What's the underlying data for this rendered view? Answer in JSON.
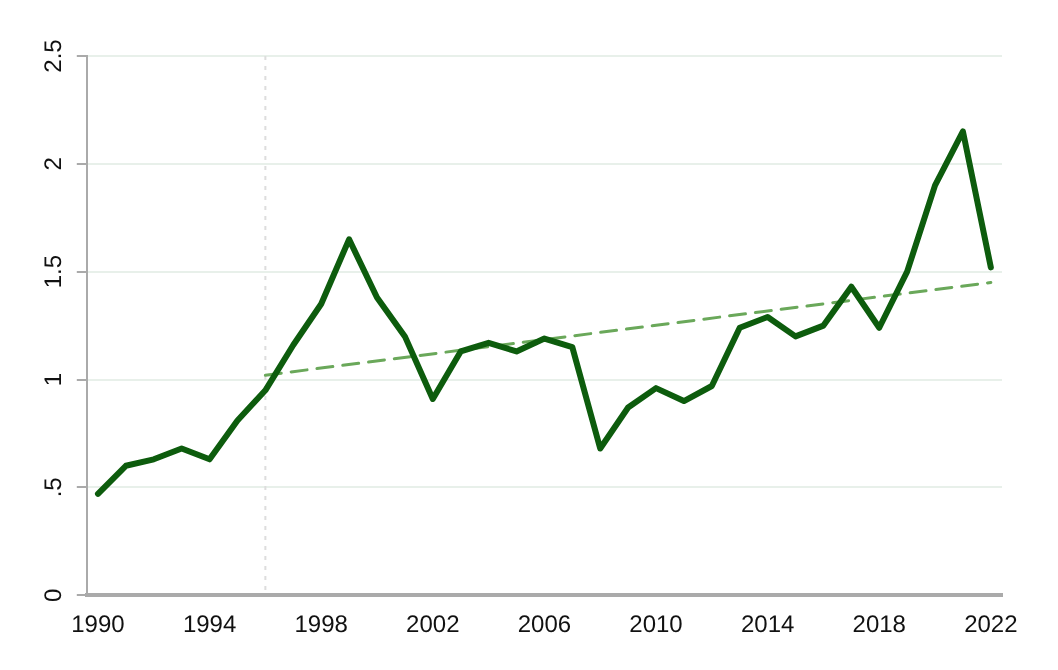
{
  "chart_data": {
    "type": "line",
    "x": [
      1990,
      1991,
      1992,
      1993,
      1994,
      1995,
      1996,
      1997,
      1998,
      1999,
      2000,
      2001,
      2002,
      2003,
      2004,
      2005,
      2006,
      2007,
      2008,
      2009,
      2010,
      2011,
      2012,
      2013,
      2014,
      2015,
      2016,
      2017,
      2018,
      2019,
      2020,
      2021,
      2022
    ],
    "series": [
      {
        "color": "#0d5c0d",
        "values": [
          0.47,
          0.6,
          0.63,
          0.68,
          0.63,
          0.81,
          0.95,
          1.16,
          1.35,
          1.65,
          1.38,
          1.2,
          0.91,
          1.13,
          1.17,
          1.13,
          1.19,
          1.15,
          0.68,
          0.87,
          0.96,
          0.9,
          0.97,
          1.24,
          1.29,
          1.2,
          1.25,
          1.43,
          1.24,
          1.5,
          1.9,
          2.15,
          1.52
        ]
      },
      {
        "type": "line",
        "color": "#6aa85a",
        "line_style": "dashed",
        "x": [
          1996,
          2022
        ],
        "values": [
          1.02,
          1.45
        ]
      }
    ],
    "xlim": [
      1989.6,
      2022.4
    ],
    "xticks": [
      1990,
      1994,
      1998,
      2002,
      2006,
      2010,
      2014,
      2018,
      2022
    ],
    "ylim": [
      0,
      2.5
    ],
    "yticks": [
      0,
      {
        "value": 0.5,
        "label": ".5"
      },
      1,
      {
        "value": 1.5,
        "label": "1.5"
      },
      2,
      {
        "value": 2.5,
        "label": "2.5"
      }
    ],
    "grid": "y",
    "ref_lines": [
      {
        "axis": "x",
        "value": 1996,
        "color": "#dddddd",
        "line_style": "dotted"
      }
    ]
  }
}
